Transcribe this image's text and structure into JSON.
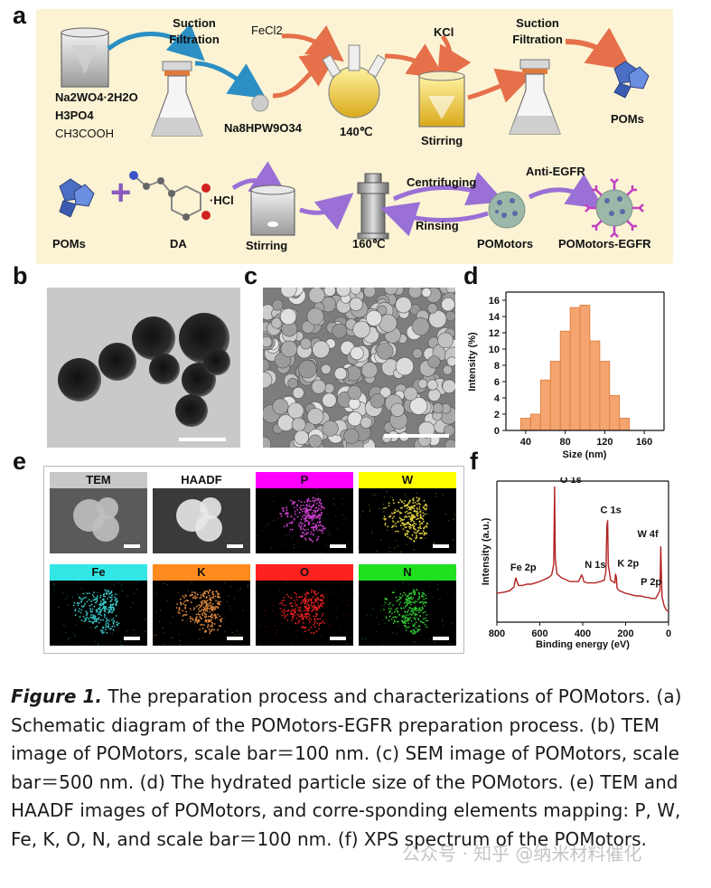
{
  "panels": {
    "a": "a",
    "b": "b",
    "c": "c",
    "d": "d",
    "e": "e",
    "f": "f"
  },
  "schematic": {
    "row1": {
      "reagents": [
        "Na2WO4·2H2O",
        "H3PO4",
        "CH3COOH"
      ],
      "step_suction1": [
        "Suction",
        "Filtration"
      ],
      "intermediate": "Na8HPW9O34",
      "fecl2": "FeCl2",
      "temp1": "140℃",
      "kcl": "KCl",
      "stirring": "Stirring",
      "step_suction2": [
        "Suction",
        "Filtration"
      ],
      "product": "POMs"
    },
    "row2": {
      "poms": "POMs",
      "plus": "+",
      "da": "DA",
      "hcl": "·HCl",
      "stirring": "Stirring",
      "temp2": "160℃",
      "centrifuging": "Centrifuging",
      "rinsing": "Rinsing",
      "pomotors": "POMotors",
      "anti_egfr": "Anti-EGFR",
      "final": "POMotors-EGFR"
    },
    "colors": {
      "background": "#fbf3d4",
      "arrow_orange": "#e6704a",
      "arrow_blue": "#2b8fc4",
      "arrow_purple": "#9a6fd6"
    }
  },
  "mapping": {
    "cells": [
      {
        "label": "TEM",
        "header_color": "#c8c8c8",
        "dot": "#bfbfbf",
        "bg": "#5a5a5a"
      },
      {
        "label": "HAADF",
        "header_color": "#ffffff",
        "dot": "#e8e8e8",
        "bg": "#3a3a3a"
      },
      {
        "label": "P",
        "header_color": "#ff00ff",
        "dot": "#d040d0",
        "bg": "#000000"
      },
      {
        "label": "W",
        "header_color": "#ffff00",
        "dot": "#e0d040",
        "bg": "#000000"
      },
      {
        "label": "Fe",
        "header_color": "#33e6e6",
        "dot": "#38c8c8",
        "bg": "#000000"
      },
      {
        "label": "K",
        "header_color": "#ff8a1e",
        "dot": "#e08a40",
        "bg": "#000000"
      },
      {
        "label": "O",
        "header_color": "#ff2020",
        "dot": "#e02020",
        "bg": "#000000"
      },
      {
        "label": "N",
        "header_color": "#20e020",
        "dot": "#30c030",
        "bg": "#000000"
      }
    ]
  },
  "chart_data": [
    {
      "type": "bar",
      "panel": "d",
      "xlabel": "Size (nm)",
      "ylabel": "Intensity (%)",
      "x": [
        40,
        50,
        60,
        70,
        80,
        90,
        100,
        110,
        120,
        130
      ],
      "values": [
        1.5,
        2.0,
        6.2,
        8.5,
        12.2,
        15.1,
        15.4,
        11.0,
        8.5,
        4.3
      ],
      "extra": {
        "x": 140,
        "value": 1.5
      },
      "xlim": [
        20,
        180
      ],
      "ylim": [
        0,
        17
      ],
      "xticks": [
        "40",
        "80",
        "120",
        "160"
      ],
      "yticks": [
        "0",
        "2",
        "4",
        "6",
        "8",
        "10",
        "12",
        "14",
        "16"
      ],
      "bar_color": "#f4a56f",
      "bar_edge": "#d97a3a"
    },
    {
      "type": "line",
      "panel": "f",
      "xlabel": "Binding energy (eV)",
      "ylabel": "Intensity (a.u.)",
      "xlim": [
        800,
        0
      ],
      "xticks": [
        "800",
        "600",
        "400",
        "200",
        "0"
      ],
      "line_color": "#b22222",
      "peak_labels": [
        "O 1s",
        "C 1s",
        "Fe 2p",
        "N 1s",
        "K 2p",
        "W 4f",
        "P 2p"
      ],
      "x": [
        800,
        760,
        740,
        720,
        712,
        706,
        700,
        680,
        660,
        640,
        600,
        560,
        545,
        535,
        531,
        528,
        520,
        500,
        460,
        420,
        405,
        399,
        395,
        380,
        340,
        300,
        292,
        287,
        284,
        281,
        270,
        250,
        247,
        243,
        240,
        230,
        200,
        150,
        130,
        110,
        100,
        80,
        60,
        40,
        36,
        33,
        30,
        20,
        10,
        0
      ],
      "y": [
        0.18,
        0.19,
        0.2,
        0.23,
        0.3,
        0.27,
        0.24,
        0.24,
        0.25,
        0.25,
        0.27,
        0.3,
        0.32,
        0.4,
        1.0,
        0.45,
        0.33,
        0.3,
        0.27,
        0.27,
        0.32,
        0.3,
        0.27,
        0.26,
        0.26,
        0.28,
        0.35,
        0.7,
        0.74,
        0.4,
        0.28,
        0.26,
        0.33,
        0.3,
        0.22,
        0.2,
        0.18,
        0.16,
        0.16,
        0.15,
        0.15,
        0.14,
        0.14,
        0.2,
        0.54,
        0.3,
        0.15,
        0.08,
        0.05,
        0.04
      ]
    }
  ],
  "caption": {
    "figure_label": "Figure 1.",
    "text": " The preparation process and characterizations of POMotors. (a) Schematic diagram of the POMotors-EGFR preparation process. (b) TEM image of POMotors, scale bar＝100 nm. (c) SEM image of POMotors, scale bar＝500 nm. (d) The hydrated particle size of the POMotors. (e) TEM and HAADF images of POMotors, and corre-sponding elements mapping: P, W, Fe, K, O, N, and scale bar＝100 nm. (f) XPS spectrum of the POMotors."
  },
  "watermark": "公众号 · 知乎 @纳米材料催化"
}
